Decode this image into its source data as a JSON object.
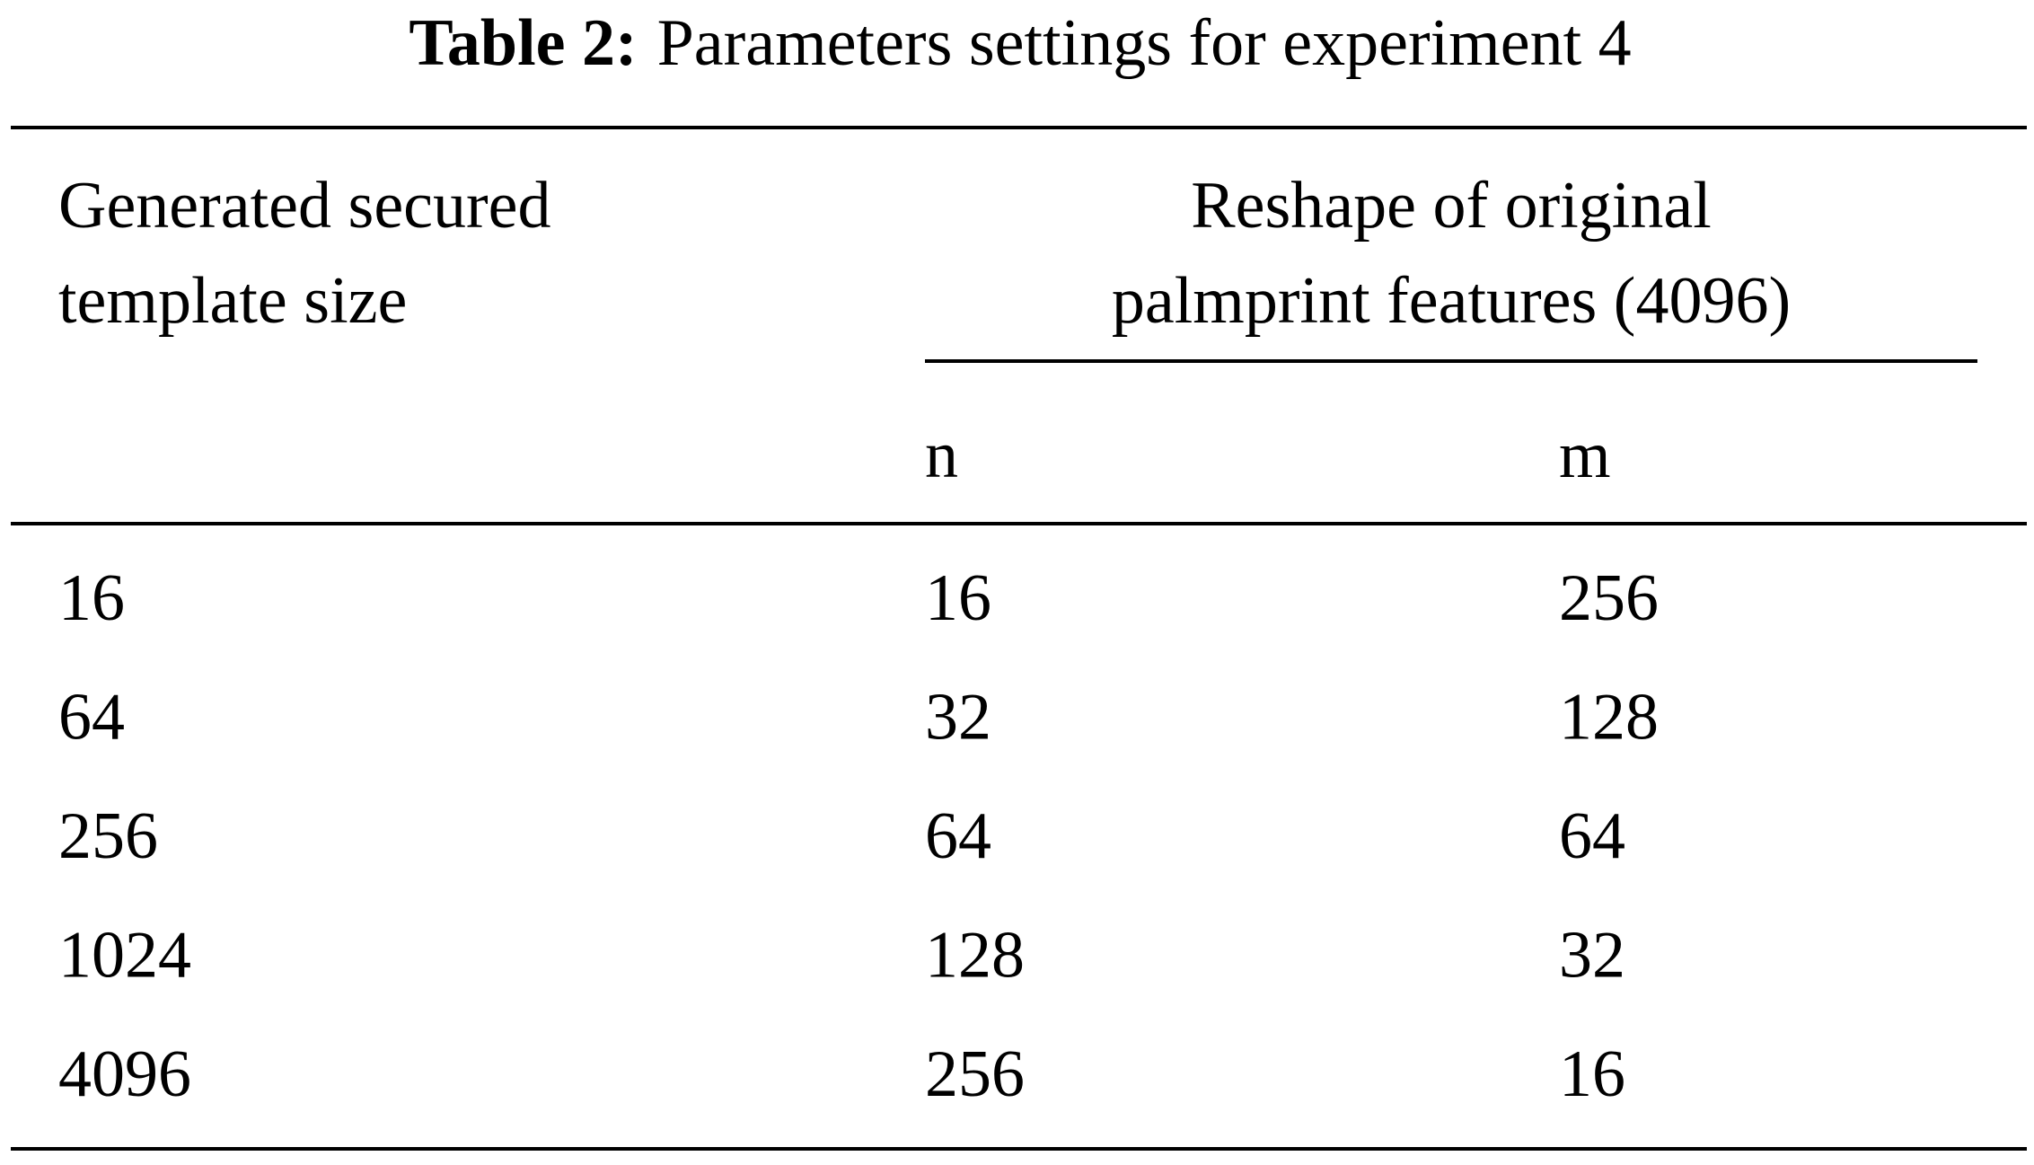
{
  "title": {
    "label": "Table 2:",
    "text": "Parameters settings for experiment 4"
  },
  "table": {
    "header": [
      {
        "lines": [
          "Generated secured",
          "template size"
        ]
      },
      {
        "lines": [
          "Reshape of original",
          "palmprint features (4096)"
        ]
      }
    ],
    "subheader": [
      "n",
      "m"
    ],
    "rows": [
      [
        16,
        16,
        256
      ],
      [
        64,
        32,
        128
      ],
      [
        256,
        64,
        64
      ],
      [
        1024,
        128,
        32
      ],
      [
        4096,
        256,
        16
      ]
    ]
  }
}
